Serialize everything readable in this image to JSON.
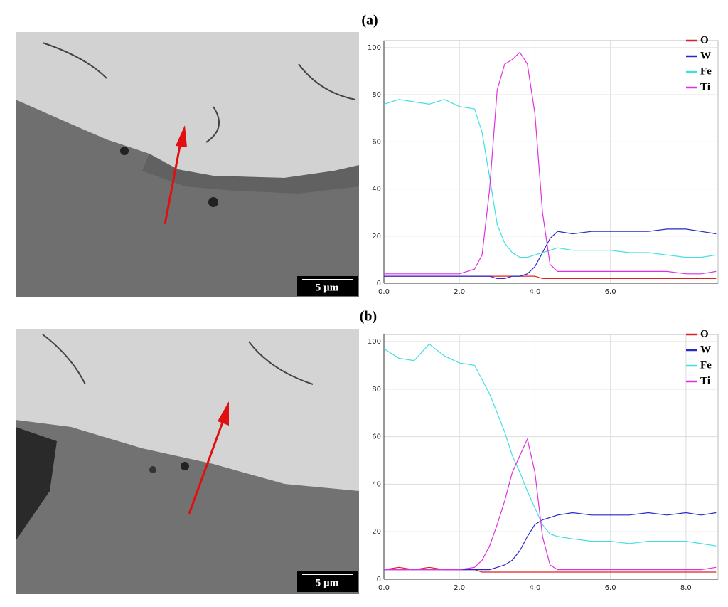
{
  "panels": [
    {
      "label": "(a)",
      "scale_bar": "5 µm"
    },
    {
      "label": "(b)",
      "scale_bar": "5 µm"
    }
  ],
  "chart_data": [
    {
      "type": "line",
      "legend": "upper right",
      "grid": true,
      "x": [
        0,
        0.4,
        0.8,
        1.2,
        1.6,
        2.0,
        2.4,
        2.6,
        2.8,
        3.0,
        3.2,
        3.4,
        3.6,
        3.8,
        4.0,
        4.2,
        4.4,
        4.6,
        5.0,
        5.5,
        6.0,
        6.5,
        7.0,
        7.5,
        8.0,
        8.4,
        8.8
      ],
      "xlim": [
        0,
        8.85
      ],
      "ylim": [
        0,
        103
      ],
      "xticks": [
        {
          "value": 0,
          "label": "0.0"
        },
        {
          "value": 2,
          "label": "2.0"
        },
        {
          "value": 4,
          "label": "4.0"
        },
        {
          "value": 6,
          "label": "6.0"
        }
      ],
      "yticks": [
        0,
        20,
        40,
        60,
        80,
        100
      ],
      "series": [
        {
          "name": "O",
          "color": "#e02020",
          "values": [
            3,
            3,
            3,
            3,
            3,
            3,
            3,
            3,
            3,
            3,
            3,
            3,
            3,
            3,
            3,
            2,
            2,
            2,
            2,
            2,
            2,
            2,
            2,
            2,
            2,
            2,
            2
          ]
        },
        {
          "name": "W",
          "color": "#2828c8",
          "values": [
            3,
            3,
            3,
            3,
            3,
            3,
            3,
            3,
            3,
            2,
            2,
            3,
            3,
            4,
            7,
            13,
            19,
            22,
            21,
            22,
            22,
            22,
            22,
            23,
            23,
            22,
            21
          ]
        },
        {
          "name": "Fe",
          "color": "#40e0e0",
          "values": [
            76,
            78,
            77,
            76,
            78,
            75,
            74,
            64,
            45,
            25,
            17,
            13,
            11,
            11,
            12,
            13,
            14,
            15,
            14,
            14,
            14,
            13,
            13,
            12,
            11,
            11,
            12
          ]
        },
        {
          "name": "Ti",
          "color": "#e030e0",
          "values": [
            4,
            4,
            4,
            4,
            4,
            4,
            6,
            12,
            40,
            82,
            93,
            95,
            98,
            93,
            72,
            30,
            8,
            5,
            5,
            5,
            5,
            5,
            5,
            5,
            4,
            4,
            5
          ]
        }
      ]
    },
    {
      "type": "line",
      "legend": "upper right",
      "grid": true,
      "x": [
        0,
        0.4,
        0.8,
        1.2,
        1.6,
        2.0,
        2.4,
        2.6,
        2.8,
        3.0,
        3.2,
        3.4,
        3.6,
        3.8,
        4.0,
        4.2,
        4.4,
        4.6,
        5.0,
        5.5,
        6.0,
        6.5,
        7.0,
        7.5,
        8.0,
        8.4,
        8.8
      ],
      "xlim": [
        0,
        8.85
      ],
      "ylim": [
        0,
        103
      ],
      "xticks": [
        {
          "value": 0,
          "label": "0.0"
        },
        {
          "value": 2,
          "label": "2.0"
        },
        {
          "value": 4,
          "label": "4.0"
        },
        {
          "value": 6,
          "label": "6.0"
        },
        {
          "value": 8,
          "label": "8.0"
        }
      ],
      "yticks": [
        0,
        20,
        40,
        60,
        80,
        100
      ],
      "series": [
        {
          "name": "O",
          "color": "#e02020",
          "values": [
            4,
            5,
            4,
            5,
            4,
            4,
            4,
            3,
            3,
            3,
            3,
            3,
            3,
            3,
            3,
            3,
            3,
            3,
            3,
            3,
            3,
            3,
            3,
            3,
            3,
            3,
            3
          ]
        },
        {
          "name": "W",
          "color": "#2828c8",
          "values": [
            4,
            4,
            4,
            4,
            4,
            4,
            4,
            4,
            4,
            5,
            6,
            8,
            12,
            18,
            23,
            25,
            26,
            27,
            28,
            27,
            27,
            27,
            28,
            27,
            28,
            27,
            28
          ]
        },
        {
          "name": "Fe",
          "color": "#40e0e0",
          "values": [
            97,
            93,
            92,
            99,
            94,
            91,
            90,
            84,
            78,
            70,
            62,
            52,
            45,
            37,
            30,
            23,
            19,
            18,
            17,
            16,
            16,
            15,
            16,
            16,
            16,
            15,
            14
          ]
        },
        {
          "name": "Ti",
          "color": "#e030e0",
          "values": [
            4,
            4,
            4,
            4,
            4,
            4,
            5,
            8,
            14,
            23,
            33,
            45,
            52,
            59,
            45,
            18,
            6,
            4,
            4,
            4,
            4,
            4,
            4,
            4,
            4,
            4,
            5
          ]
        }
      ]
    }
  ]
}
